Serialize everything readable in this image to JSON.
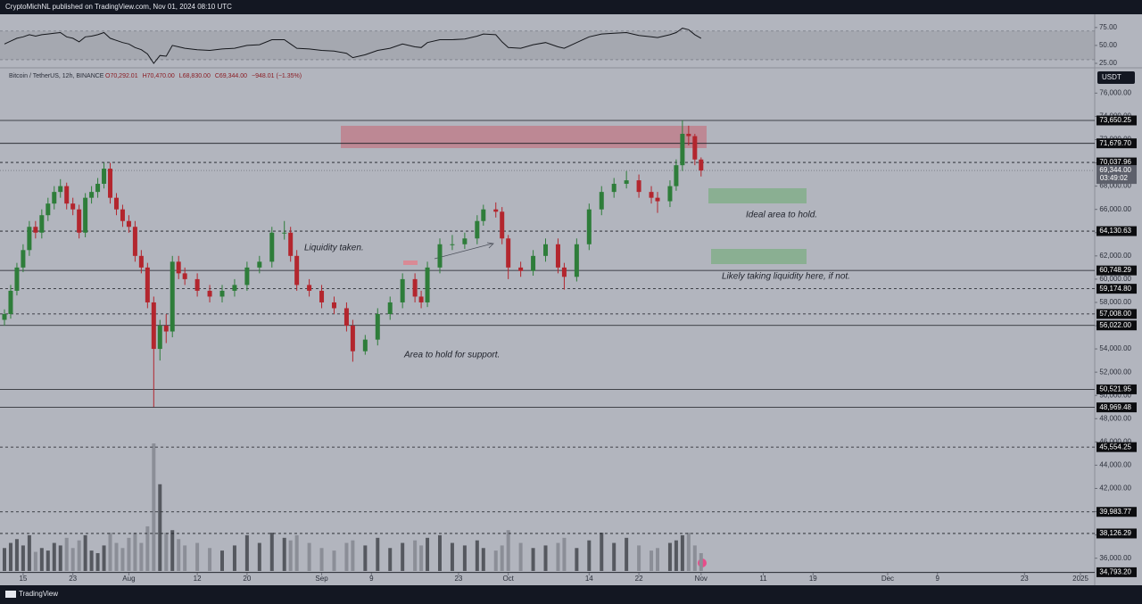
{
  "header": {
    "text": "CryptoMichNL published on TradingView.com, Nov 01, 2024 08:10 UTC"
  },
  "footer": {
    "brand": "TradingView"
  },
  "chart_data": {
    "type": "candlestick",
    "title": "Bitcoin / TetherUS, 12h, BINANCE",
    "ohlc_text": [
      "O70,292.01",
      "H70,470.00",
      "L68,830.00",
      "C69,344.00",
      "−948.01 (−1.35%)"
    ],
    "currency": "USDT",
    "up_color": "#2e7d3a",
    "down_color": "#b3262e",
    "volume_up_color": "#55585f",
    "volume_down_color": "#8b8e97",
    "x": [
      194,
      195,
      196,
      197,
      198,
      199,
      200,
      201,
      202,
      203,
      204,
      205,
      206,
      207,
      208,
      209,
      210,
      211,
      212,
      213,
      214,
      215,
      216,
      217,
      218,
      219,
      220,
      221,
      222,
      223,
      225,
      227,
      229,
      231,
      233,
      235,
      237,
      239,
      240,
      241,
      243,
      245,
      247,
      249,
      250,
      252,
      254,
      256,
      258,
      260,
      261,
      262,
      264,
      266,
      268,
      270,
      271,
      273,
      274,
      275,
      277,
      279,
      281,
      283,
      284,
      286,
      288,
      290,
      292,
      294,
      296,
      298,
      299,
      301,
      302,
      303,
      304,
      305,
      306
    ],
    "open": [
      56500,
      57000,
      59000,
      61000,
      62500,
      64500,
      64000,
      65500,
      66500,
      67500,
      68000,
      66500,
      66000,
      64000,
      67000,
      67500,
      68200,
      69500,
      67000,
      66000,
      65000,
      64500,
      62000,
      61000,
      58000,
      54000,
      56000,
      55500,
      61500,
      60500,
      60000,
      59000,
      58500,
      59000,
      59500,
      61000,
      61500,
      64000,
      64000,
      62000,
      59500,
      59000,
      58000,
      57500,
      56000,
      53800,
      54800,
      57000,
      58000,
      60000,
      58500,
      58000,
      61000,
      63000,
      63000,
      63500,
      65000,
      66000,
      65800,
      63500,
      61000,
      60700,
      62000,
      63000,
      61000,
      60200,
      63000,
      66000,
      67500,
      68200,
      68500,
      67500,
      67000,
      66700,
      68000,
      69800,
      72500,
      72300,
      70292
    ],
    "high": [
      57400,
      59500,
      61400,
      63000,
      65000,
      65000,
      66000,
      67000,
      68000,
      68600,
      68300,
      67000,
      66400,
      67400,
      68000,
      68700,
      70000,
      70000,
      67400,
      66400,
      65500,
      65000,
      62500,
      61400,
      58500,
      56500,
      57000,
      62000,
      62000,
      61000,
      60500,
      59500,
      59500,
      60000,
      61500,
      62000,
      64500,
      65000,
      64500,
      62500,
      60000,
      59500,
      58500,
      58000,
      56500,
      55200,
      57500,
      58500,
      60500,
      60500,
      59000,
      61500,
      63500,
      63800,
      64000,
      65500,
      66400,
      66600,
      66200,
      63800,
      61500,
      62500,
      63500,
      63500,
      61400,
      63500,
      66500,
      68000,
      68700,
      69300,
      69000,
      68000,
      67500,
      68500,
      70300,
      73650,
      73200,
      72500,
      70470
    ],
    "low": [
      56000,
      56600,
      58600,
      60600,
      62000,
      63500,
      63500,
      65000,
      66000,
      67000,
      66000,
      65500,
      63500,
      63600,
      66500,
      67000,
      67800,
      66500,
      65500,
      64500,
      64000,
      61500,
      60500,
      57500,
      49000,
      53000,
      54500,
      55000,
      60000,
      59500,
      58500,
      58000,
      58000,
      58500,
      59000,
      60500,
      61000,
      63400,
      61500,
      59000,
      58500,
      57500,
      57000,
      55500,
      52900,
      53500,
      54300,
      56500,
      57500,
      58000,
      57500,
      57600,
      60500,
      62500,
      62600,
      63000,
      64600,
      65300,
      63000,
      60000,
      60200,
      60300,
      61500,
      60500,
      59100,
      59800,
      62500,
      65500,
      67000,
      67800,
      67000,
      66500,
      65700,
      66200,
      67600,
      69300,
      71500,
      69800,
      68830
    ],
    "close": [
      57000,
      59000,
      61000,
      62500,
      64500,
      64000,
      65500,
      66500,
      67500,
      68000,
      66500,
      66000,
      64000,
      67000,
      67500,
      68200,
      69500,
      67000,
      66000,
      65000,
      64500,
      62000,
      61000,
      58000,
      54000,
      56000,
      55500,
      61500,
      60500,
      60000,
      59000,
      58500,
      59000,
      59500,
      61000,
      61500,
      64000,
      64000,
      62000,
      59500,
      59000,
      58000,
      57500,
      56000,
      53800,
      54800,
      57000,
      58000,
      60000,
      58500,
      58000,
      61000,
      63000,
      63000,
      63500,
      65000,
      66000,
      65800,
      63500,
      61000,
      60700,
      62000,
      63000,
      61000,
      60200,
      63000,
      66000,
      67500,
      68200,
      68500,
      67500,
      67000,
      66700,
      68000,
      69800,
      72500,
      72300,
      70292,
      69344
    ],
    "volume": [
      18,
      22,
      25,
      20,
      28,
      15,
      18,
      16,
      22,
      20,
      26,
      18,
      24,
      28,
      16,
      14,
      20,
      30,
      22,
      18,
      26,
      30,
      22,
      35,
      100,
      68,
      30,
      32,
      25,
      20,
      22,
      18,
      16,
      20,
      28,
      22,
      30,
      26,
      24,
      28,
      22,
      18,
      16,
      22,
      24,
      20,
      26,
      18,
      22,
      24,
      20,
      26,
      28,
      22,
      20,
      24,
      18,
      16,
      20,
      32,
      22,
      18,
      20,
      22,
      26,
      18,
      24,
      30,
      22,
      26,
      20,
      16,
      18,
      22,
      24,
      28,
      30,
      20,
      14
    ],
    "volume_lim": [
      0,
      100
    ],
    "xlim": [
      194,
      369
    ],
    "xticks": [
      {
        "value": 197,
        "label": "15"
      },
      {
        "value": 205,
        "label": "23"
      },
      {
        "value": 214,
        "label": "Aug"
      },
      {
        "value": 225,
        "label": "12"
      },
      {
        "value": 233,
        "label": "20"
      },
      {
        "value": 245,
        "label": "Sep"
      },
      {
        "value": 253,
        "label": "9"
      },
      {
        "value": 267,
        "label": "23"
      },
      {
        "value": 275,
        "label": "Oct"
      },
      {
        "value": 288,
        "label": "14"
      },
      {
        "value": 296,
        "label": "22"
      },
      {
        "value": 306,
        "label": "Nov"
      },
      {
        "value": 316,
        "label": "11"
      },
      {
        "value": 324,
        "label": "19"
      },
      {
        "value": 336,
        "label": "Dec"
      },
      {
        "value": 344,
        "label": "9"
      },
      {
        "value": 358,
        "label": "23"
      },
      {
        "value": 367,
        "label": "2025"
      }
    ],
    "ylim": [
      34900,
      78100
    ],
    "yticks": [
      {
        "value": 36000,
        "label": "36,000.00"
      },
      {
        "value": 38000,
        "label": "38,000.00"
      },
      {
        "value": 40000,
        "label": "40,000.00"
      },
      {
        "value": 42000,
        "label": "42,000.00"
      },
      {
        "value": 44000,
        "label": "44,000.00"
      },
      {
        "value": 46000,
        "label": "46,000.00"
      },
      {
        "value": 48000,
        "label": "48,000.00"
      },
      {
        "value": 50000,
        "label": "50,000.00"
      },
      {
        "value": 52000,
        "label": "52,000.00"
      },
      {
        "value": 54000,
        "label": "54,000.00"
      },
      {
        "value": 56000,
        "label": "56,000.00"
      },
      {
        "value": 58000,
        "label": "58,000.00"
      },
      {
        "value": 60000,
        "label": "60,000.00"
      },
      {
        "value": 62000,
        "label": "62,000.00"
      },
      {
        "value": 64000,
        "label": "64,000.00"
      },
      {
        "value": 66000,
        "label": "66,000.00"
      },
      {
        "value": 68000,
        "label": "68,000.00"
      },
      {
        "value": 70000,
        "label": "70,000.00"
      },
      {
        "value": 72000,
        "label": "72,000.00"
      },
      {
        "value": 74000,
        "label": "74,000.00"
      },
      {
        "value": 76000,
        "label": "76,000.00"
      }
    ],
    "levels": [
      {
        "value": 73650.25,
        "label": "73,650.25",
        "style": "solid"
      },
      {
        "value": 71679.7,
        "label": "71,679.70",
        "style": "solid"
      },
      {
        "value": 70037.96,
        "label": "70,037.96",
        "style": "dashed"
      },
      {
        "value": 64130.63,
        "label": "64,130.63",
        "style": "dashed"
      },
      {
        "value": 60748.29,
        "label": "60,748.29",
        "style": "solid"
      },
      {
        "value": 59174.8,
        "label": "59,174.80",
        "style": "dashed"
      },
      {
        "value": 57008.0,
        "label": "57,008.00",
        "style": "dashed"
      },
      {
        "value": 56022.0,
        "label": "56,022.00",
        "style": "solid"
      },
      {
        "value": 50521.95,
        "label": "50,521.95",
        "style": "solid"
      },
      {
        "value": 48969.48,
        "label": "48,969.48",
        "style": "solid"
      },
      {
        "value": 45554.25,
        "label": "45,554.25",
        "style": "dashed"
      },
      {
        "value": 39983.77,
        "label": "39,983.77",
        "style": "dashed"
      },
      {
        "value": 38126.29,
        "label": "38,126.29",
        "style": "dashed"
      },
      {
        "value": 34793.2,
        "label": "34,793.20",
        "style": "solid"
      }
    ],
    "last_price": {
      "value": 69344.0,
      "label": "69,344.00"
    },
    "countdown": "03:49:02",
    "annotations": [
      "Liquidity taken.",
      "Ideal area to hold.",
      "Likely taking liquidity here, if not.",
      "Area to hold for support."
    ],
    "rsi": {
      "type": "line",
      "color": "#15171c",
      "values": [
        52,
        56,
        60,
        62,
        65,
        63,
        65,
        66,
        67,
        68,
        62,
        60,
        55,
        62,
        63,
        65,
        68,
        60,
        57,
        54,
        52,
        47,
        44,
        38,
        25,
        36,
        35,
        50,
        48,
        46,
        44,
        43,
        45,
        46,
        50,
        51,
        58,
        58,
        52,
        46,
        45,
        43,
        42,
        39,
        33,
        37,
        43,
        46,
        52,
        48,
        47,
        54,
        58,
        58,
        59,
        63,
        66,
        65,
        55,
        47,
        46,
        51,
        54,
        48,
        46,
        54,
        62,
        66,
        67,
        68,
        64,
        62,
        61,
        65,
        68,
        74,
        72,
        65,
        60
      ],
      "ylim": [
        20,
        91
      ],
      "yticks": [
        {
          "value": 25,
          "label": "25.00"
        },
        {
          "value": 50,
          "label": "50.00"
        },
        {
          "value": 75,
          "label": "75.00"
        }
      ],
      "band": [
        30,
        70
      ]
    }
  }
}
